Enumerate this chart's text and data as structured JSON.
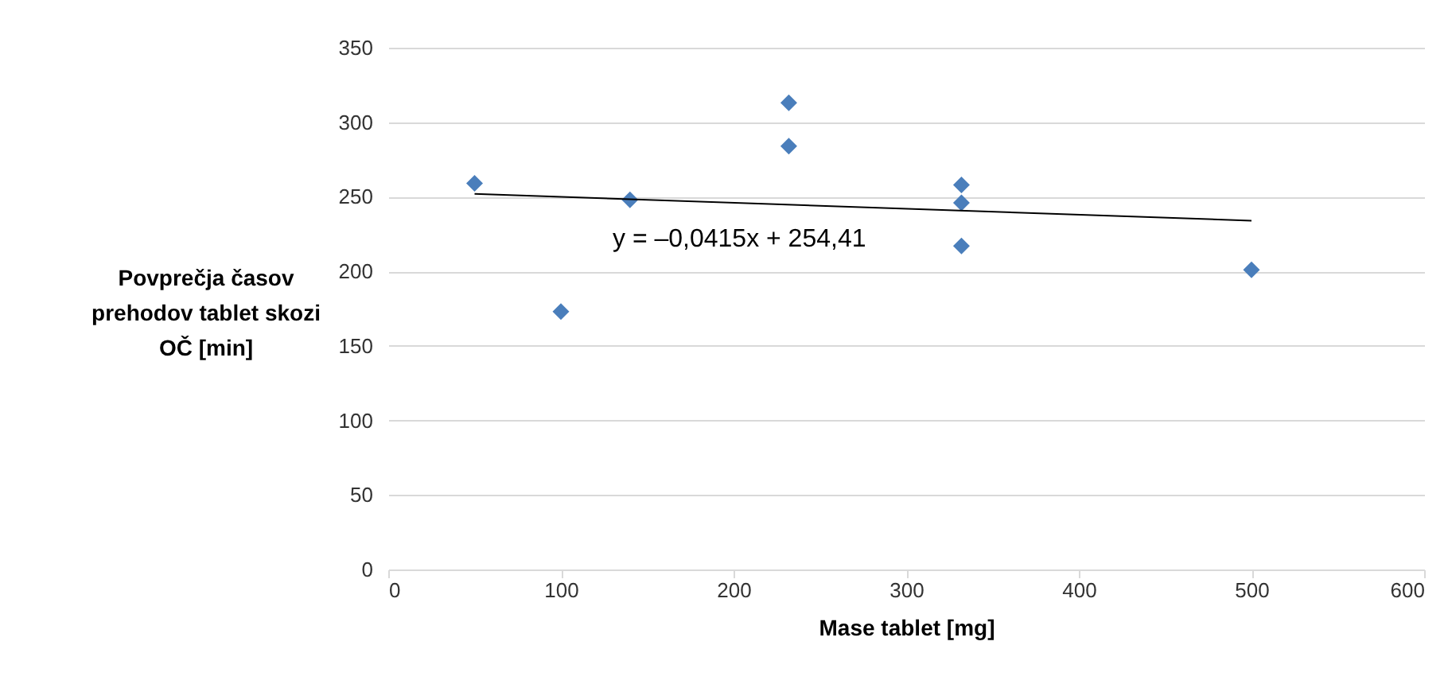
{
  "chart_data": {
    "type": "scatter",
    "xlabel": "Mase tablet [mg]",
    "ylabel": "Povprečja časov prehodov tablet skozi OČ [min]",
    "x": [
      50,
      100,
      140,
      232,
      232,
      332,
      332,
      332,
      500
    ],
    "series": [
      {
        "color": "#4a7ebb",
        "values": [
          259,
          173,
          248,
          313,
          284,
          258,
          246,
          217,
          201
        ],
        "marker": "diamond"
      },
      {
        "type": "line",
        "color": "#000000",
        "x": [
          50,
          500
        ],
        "values": [
          252,
          234
        ]
      }
    ],
    "annotations": [
      "y = –0,0415x + 254,41"
    ],
    "xlim": [
      0,
      600
    ],
    "xticks": [
      0,
      100,
      200,
      300,
      400,
      500,
      600
    ],
    "ylim": [
      0,
      350
    ],
    "yticks": [
      0,
      50,
      100,
      150,
      200,
      250,
      300,
      350
    ],
    "grid": "y"
  }
}
